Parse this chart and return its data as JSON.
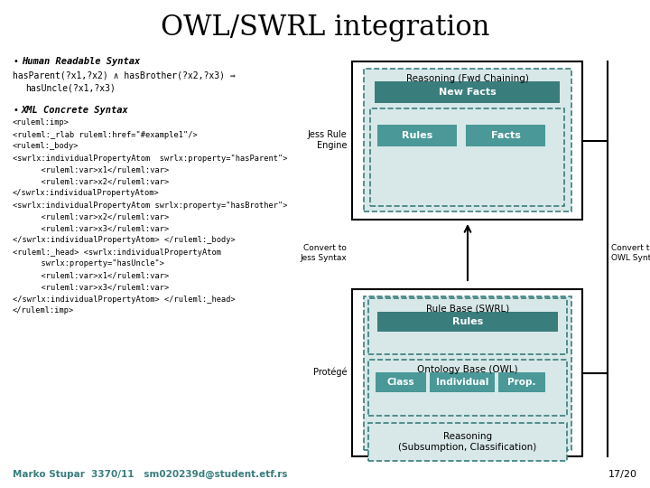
{
  "title": "OWL/SWRL integration",
  "background_color": "#ffffff",
  "title_fontsize": 22,
  "title_font": "serif",
  "bullet1_label": "Human Readable Syntax",
  "bullet2_label": "XML Concrete Syntax",
  "footer_left": "Marko Stupar  3370/11   sm020239d@student.etf.rs",
  "footer_right": "17/20",
  "jess_label": "Jess Rule\nEngine",
  "protege_label": "Protégé",
  "convert_jess": "Convert to\nJess Syntax",
  "convert_owl": "Convert to\nOWL Syntax",
  "box_reasoning_fwd_title": "Reasoning (Fwd Chaining)",
  "box_new_facts": "New Facts",
  "box_rules_top": "Rules",
  "box_facts": "Facts",
  "box_rule_base_title": "Rule Base (SWRL)",
  "box_rules_bottom": "Rules",
  "box_ontology_title": "Ontology Base (OWL)",
  "box_class": "Class",
  "box_individual": "Individual",
  "box_prop": "Prop.",
  "box_reasoning_bottom": "Reasoning\n(Subsumption, Classification)",
  "teal_dark": "#3a7d7d",
  "teal_light": "#c8dede",
  "teal_medium": "#4a9898",
  "white": "#ffffff",
  "black": "#000000",
  "gray_box_bg": "#d8e8e8",
  "xml_lines": [
    "<ruleml:imp>",
    "<ruleml:_rlab ruleml:href=\"#example1\"/>",
    "<ruleml:_body>",
    "<swrlx:individualPropertyAtom  swrlx:property=\"hasParent\">",
    "      <ruleml:var>x1</ruleml:var>",
    "      <ruleml:var>x2</ruleml:var>",
    "</swrlx:individualPropertyAtom>",
    "<swrlx:individualPropertyAtom swrlx:property=\"hasBrother\">",
    "      <ruleml:var>x2</ruleml:var>",
    "      <ruleml:var>x3</ruleml:var>",
    "</swrlx:individualPropertyAtom> </ruleml:_body>",
    "<ruleml:_head> <swrlx:individualPropertyAtom",
    "      swrlx:property=\"hasUncle\">",
    "      <ruleml:var>x1</ruleml:var>",
    "      <ruleml:var>x3</ruleml:var>",
    "</swrlx:individualPropertyAtom> </ruleml:_head>",
    "</ruleml:imp>"
  ]
}
